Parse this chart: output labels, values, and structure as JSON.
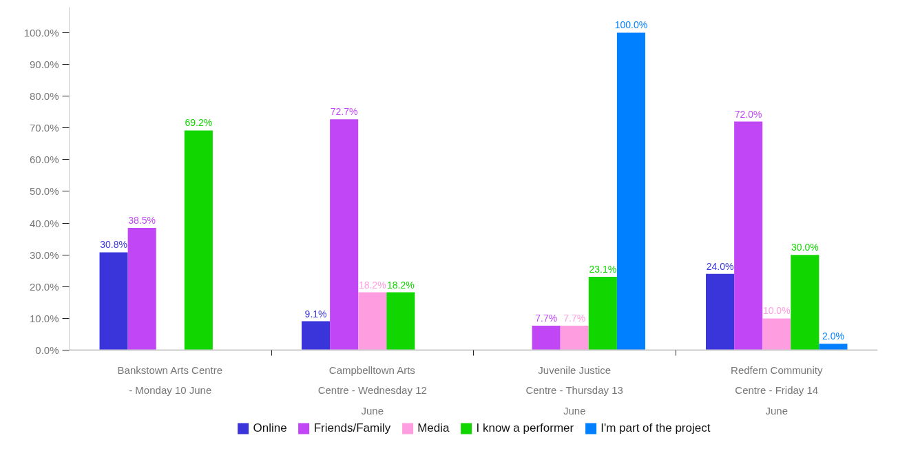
{
  "chart_data": {
    "type": "bar",
    "categories": [
      "Bankstown Arts Centre - Monday 10 June",
      "Campbelltown Arts Centre - Wednesday 12 June",
      "Juvenile Justice Centre - Thursday 13 June",
      "Redfern Community Centre - Friday 14 June"
    ],
    "series": [
      {
        "name": "Online",
        "color": "#3a35db",
        "values": [
          30.8,
          9.1,
          null,
          24.0
        ],
        "value_labels": [
          "30.8%",
          "9.1%",
          null,
          "24.0%"
        ]
      },
      {
        "name": "Friends/Family",
        "color": "#c147f6",
        "values": [
          38.5,
          72.7,
          7.7,
          72.0
        ],
        "value_labels": [
          "38.5%",
          "72.7%",
          "7.7%",
          "72.0%"
        ]
      },
      {
        "name": "Media",
        "color": "#ff9de1",
        "values": [
          null,
          18.2,
          7.7,
          10.0
        ],
        "value_labels": [
          null,
          "18.2%",
          "7.7%",
          "10.0%"
        ]
      },
      {
        "name": "I know a performer",
        "color": "#11d600",
        "values": [
          69.2,
          18.2,
          23.1,
          30.0
        ],
        "value_labels": [
          "69.2%",
          "18.2%",
          "23.1%",
          "30.0%"
        ]
      },
      {
        "name": "I'm part of the project",
        "color": "#0080ff",
        "values": [
          null,
          null,
          100.0,
          2.0
        ],
        "value_labels": [
          null,
          null,
          "100.0%",
          "2.0%"
        ]
      }
    ],
    "ylim": [
      0,
      108
    ],
    "yticks": [
      {
        "value": 0,
        "label": "0.0%"
      },
      {
        "value": 10,
        "label": "10.0%"
      },
      {
        "value": 20,
        "label": "20.0%"
      },
      {
        "value": 30,
        "label": "30.0%"
      },
      {
        "value": 40,
        "label": "40.0%"
      },
      {
        "value": 50,
        "label": "50.0%"
      },
      {
        "value": 60,
        "label": "60.0%"
      },
      {
        "value": 70,
        "label": "70.0%"
      },
      {
        "value": 80,
        "label": "80.0%"
      },
      {
        "value": 90,
        "label": "90.0%"
      },
      {
        "value": 100,
        "label": "100.0%"
      }
    ],
    "legend": "bottom"
  }
}
